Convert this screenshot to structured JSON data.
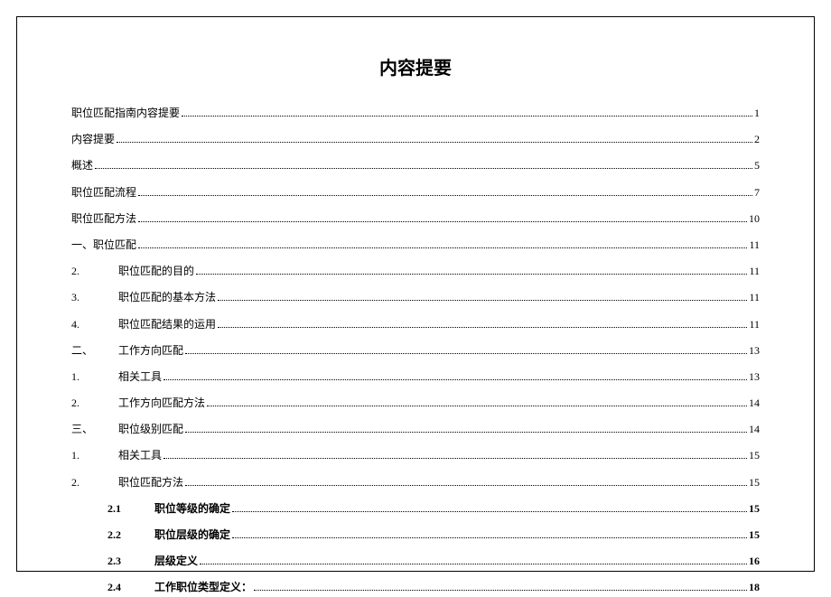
{
  "title": "内容提要",
  "entries": [
    {
      "indent": 0,
      "num": "",
      "label": "职位匹配指南内容提要",
      "page": "1",
      "bold": false
    },
    {
      "indent": 0,
      "num": "",
      "label": "内容提要",
      "page": "2",
      "bold": false
    },
    {
      "indent": 0,
      "num": "",
      "label": "概述",
      "page": "5",
      "bold": false
    },
    {
      "indent": 0,
      "num": "",
      "label": "职位匹配流程",
      "page": "7",
      "bold": false
    },
    {
      "indent": 0,
      "num": "",
      "label": "职位匹配方法",
      "page": "10",
      "bold": false
    },
    {
      "indent": 0,
      "num": "",
      "label": "一、职位匹配",
      "page": "11",
      "bold": false
    },
    {
      "indent": 1,
      "num": "2.",
      "label": "职位匹配的目的",
      "page": "11",
      "bold": false
    },
    {
      "indent": 1,
      "num": "3.",
      "label": "职位匹配的基本方法",
      "page": "11",
      "bold": false
    },
    {
      "indent": 1,
      "num": "4.",
      "label": "职位匹配结果的运用",
      "page": "11",
      "bold": false
    },
    {
      "indent": 1,
      "num": "二、",
      "label": "工作方向匹配",
      "page": "13",
      "bold": false
    },
    {
      "indent": 1,
      "num": "1.",
      "label": "相关工具",
      "page": "13",
      "bold": false
    },
    {
      "indent": 1,
      "num": "2.",
      "label": "工作方向匹配方法",
      "page": "14",
      "bold": false
    },
    {
      "indent": 1,
      "num": "三、",
      "label": "职位级别匹配",
      "page": "14",
      "bold": false
    },
    {
      "indent": 1,
      "num": "1.",
      "label": "相关工具",
      "page": "15",
      "bold": false
    },
    {
      "indent": 1,
      "num": "2.",
      "label": "职位匹配方法",
      "page": "15",
      "bold": false
    },
    {
      "indent": 2,
      "num": "2.1",
      "label": "职位等级的确定",
      "page": "15",
      "bold": true
    },
    {
      "indent": 2,
      "num": "2.2",
      "label": "职位层级的确定",
      "page": "15",
      "bold": true
    },
    {
      "indent": 2,
      "num": "2.3",
      "label": "层级定义",
      "page": "16",
      "bold": true
    },
    {
      "indent": 2,
      "num": "2.4",
      "label": "工作职位类型定义：",
      "page": "18",
      "bold": true
    }
  ]
}
